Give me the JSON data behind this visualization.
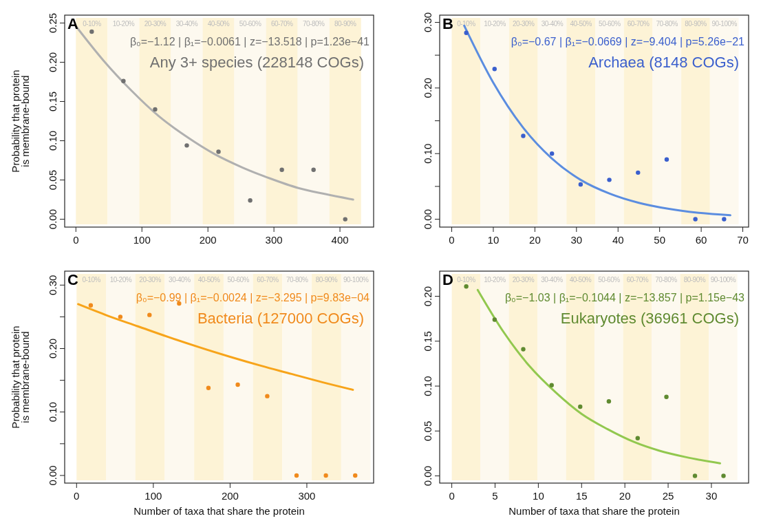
{
  "chart_data": [
    {
      "type": "scatter",
      "ylabel": "Probability that protein\nis membrane-bound",
      "annotations": [
        "A",
        "β₀=−1.12 | β₁=−0.0061 | z=−13.518 | p=1.23e−41",
        "Any 3+ species (228148 COGs)"
      ],
      "xlim": [
        -17,
        451
      ],
      "xticks": [
        0,
        100,
        200,
        300,
        400
      ],
      "ylim": [
        -0.01,
        0.26
      ],
      "yticks": [
        {
          "value": 0,
          "label": "0.00"
        },
        {
          "value": 0.05,
          "label": "0.05"
        },
        {
          "value": 0.1,
          "label": "0.10"
        },
        {
          "value": 0.15,
          "label": "0.15"
        },
        {
          "value": 0.2,
          "label": "0.20"
        },
        {
          "value": 0.25,
          "label": "0.25"
        }
      ],
      "bands": [
        {
          "axis": "x",
          "from": 0,
          "to": 48,
          "label": "0-10%",
          "color": "#fdf3d6"
        },
        {
          "axis": "x",
          "from": 48,
          "to": 96,
          "label": "10-20%",
          "color": "#fdf9ef"
        },
        {
          "axis": "x",
          "from": 96,
          "to": 144,
          "label": "20-30%",
          "color": "#fdf3d6"
        },
        {
          "axis": "x",
          "from": 144,
          "to": 192,
          "label": "30-40%",
          "color": "#fdf9ef"
        },
        {
          "axis": "x",
          "from": 192,
          "to": 240,
          "label": "40-50%",
          "color": "#fdf3d6"
        },
        {
          "axis": "x",
          "from": 240,
          "to": 288,
          "label": "50-60%",
          "color": "#fdf9ef"
        },
        {
          "axis": "x",
          "from": 288,
          "to": 336,
          "label": "60-70%",
          "color": "#fdf3d6"
        },
        {
          "axis": "x",
          "from": 336,
          "to": 384,
          "label": "70-80%",
          "color": "#fdf9ef"
        },
        {
          "axis": "x",
          "from": 384,
          "to": 432,
          "label": "80-90%",
          "color": "#fdf3d6"
        }
      ],
      "series": [
        {
          "marker": "circle",
          "color": "#707070",
          "x": [
            24,
            72,
            120,
            168,
            216,
            264,
            312,
            360,
            408
          ],
          "values": [
            0.239,
            0.176,
            0.14,
            0.094,
            0.086,
            0.024,
            0.063,
            0.063,
            0
          ]
        },
        {
          "type": "line",
          "color": "#b0b0b0",
          "x": [
            0,
            42,
            84,
            126,
            168,
            210,
            252,
            294,
            336,
            378,
            420
          ],
          "values": [
            0.246,
            0.202,
            0.164,
            0.131,
            0.105,
            0.083,
            0.066,
            0.052,
            0.04,
            0.032,
            0.025
          ]
        }
      ]
    },
    {
      "type": "scatter",
      "annotations": [
        "B",
        "β₀=−0.67 | β₁=−0.0669 | z=−9.404 | p=5.26e−21",
        "Archaea (8148 COGs)"
      ],
      "xlim": [
        -2.9,
        71.4
      ],
      "xticks": [
        0,
        10,
        20,
        30,
        40,
        50,
        60,
        70
      ],
      "ylim": [
        -0.012,
        0.311
      ],
      "yticks": [
        {
          "value": 0,
          "label": "0.00"
        },
        {
          "value": 0.05,
          "label": null
        },
        {
          "value": 0.1,
          "label": "0.10"
        },
        {
          "value": 0.15,
          "label": null
        },
        {
          "value": 0.2,
          "label": "0.20"
        },
        {
          "value": 0.25,
          "label": null
        },
        {
          "value": 0.3,
          "label": "0.30"
        }
      ],
      "bands": [
        {
          "axis": "x",
          "from": 0,
          "to": 6.9,
          "label": "0-10%",
          "color": "#fdf3d6"
        },
        {
          "axis": "x",
          "from": 6.9,
          "to": 13.8,
          "label": "10-20%",
          "color": "#fdf9ef"
        },
        {
          "axis": "x",
          "from": 13.8,
          "to": 20.7,
          "label": "20-30%",
          "color": "#fdf3d6"
        },
        {
          "axis": "x",
          "from": 20.7,
          "to": 27.6,
          "label": "30-40%",
          "color": "#fdf9ef"
        },
        {
          "axis": "x",
          "from": 27.6,
          "to": 34.5,
          "label": "40-50%",
          "color": "#fdf3d6"
        },
        {
          "axis": "x",
          "from": 34.5,
          "to": 41.4,
          "label": "50-60%",
          "color": "#fdf9ef"
        },
        {
          "axis": "x",
          "from": 41.4,
          "to": 48.3,
          "label": "60-70%",
          "color": "#fdf3d6"
        },
        {
          "axis": "x",
          "from": 48.3,
          "to": 55.2,
          "label": "70-80%",
          "color": "#fdf9ef"
        },
        {
          "axis": "x",
          "from": 55.2,
          "to": 62.1,
          "label": "80-90%",
          "color": "#fdf3d6"
        },
        {
          "axis": "x",
          "from": 62.1,
          "to": 69,
          "label": "90-100%",
          "color": "#fdf9ef"
        }
      ],
      "series": [
        {
          "marker": "circle",
          "color": "#3a5fcd",
          "x": [
            3.5,
            10.3,
            17.2,
            24.1,
            31,
            37.9,
            44.8,
            51.7,
            58.6,
            65.5
          ],
          "values": [
            0.284,
            0.229,
            0.127,
            0.1,
            0.053,
            0.06,
            0.071,
            0.091,
            0,
            0
          ]
        },
        {
          "type": "line",
          "color": "#5b8de0",
          "x": [
            3,
            10,
            17,
            24,
            31,
            38,
            45,
            52,
            59,
            67
          ],
          "values": [
            0.295,
            0.208,
            0.141,
            0.093,
            0.06,
            0.039,
            0.025,
            0.016,
            0.01,
            0.006
          ]
        }
      ]
    },
    {
      "type": "scatter",
      "xlabel": "Number of taxa that share the protein",
      "ylabel": "Probability that protein\nis membrane-bound",
      "annotations": [
        "C",
        "β₀=−0.99 | β₁=−0.0024 | z=−3.295 | p=9.83e−04",
        "Bacteria (127000 COGs)"
      ],
      "xlim": [
        -15.5,
        387
      ],
      "xticks": [
        0,
        100,
        200,
        300
      ],
      "ylim": [
        -0.012,
        0.322
      ],
      "yticks": [
        {
          "value": 0,
          "label": "0.00"
        },
        {
          "value": 0.05,
          "label": null
        },
        {
          "value": 0.1,
          "label": "0.10"
        },
        {
          "value": 0.15,
          "label": null
        },
        {
          "value": 0.2,
          "label": "0.20"
        },
        {
          "value": 0.25,
          "label": null
        },
        {
          "value": 0.3,
          "label": "0.30"
        }
      ],
      "bands": [
        {
          "axis": "x",
          "from": 0,
          "to": 38.3,
          "label": "0-10%",
          "color": "#fdf3d6"
        },
        {
          "axis": "x",
          "from": 38.3,
          "to": 76.6,
          "label": "10-20%",
          "color": "#fdf9ef"
        },
        {
          "axis": "x",
          "from": 76.6,
          "to": 114.9,
          "label": "20-30%",
          "color": "#fdf3d6"
        },
        {
          "axis": "x",
          "from": 114.9,
          "to": 153.2,
          "label": "30-40%",
          "color": "#fdf9ef"
        },
        {
          "axis": "x",
          "from": 153.2,
          "to": 191.5,
          "label": "40-50%",
          "color": "#fdf3d6"
        },
        {
          "axis": "x",
          "from": 191.5,
          "to": 229.8,
          "label": "50-60%",
          "color": "#fdf9ef"
        },
        {
          "axis": "x",
          "from": 229.8,
          "to": 268.1,
          "label": "60-70%",
          "color": "#fdf3d6"
        },
        {
          "axis": "x",
          "from": 268.1,
          "to": 306.4,
          "label": "70-80%",
          "color": "#fdf9ef"
        },
        {
          "axis": "x",
          "from": 306.4,
          "to": 344.7,
          "label": "80-90%",
          "color": "#fdf3d6"
        },
        {
          "axis": "x",
          "from": 344.7,
          "to": 383,
          "label": "90-100%",
          "color": "#fdf9ef"
        }
      ],
      "series": [
        {
          "marker": "circle",
          "color": "#f08a1c",
          "x": [
            18.5,
            57,
            95,
            133.6,
            171.8,
            210,
            248.4,
            286.6,
            324.8,
            363
          ],
          "values": [
            0.268,
            0.25,
            0.253,
            0.271,
            0.138,
            0.143,
            0.125,
            0,
            0,
            0
          ]
        },
        {
          "type": "line",
          "color": "#f7a41a",
          "x": [
            2,
            40,
            80,
            120,
            160,
            200,
            240,
            280,
            320,
            360
          ],
          "values": [
            0.27,
            0.252,
            0.235,
            0.218,
            0.202,
            0.187,
            0.173,
            0.16,
            0.147,
            0.135
          ]
        }
      ]
    },
    {
      "type": "scatter",
      "xlabel": "Number of taxa that share the protein",
      "annotations": [
        "D",
        "β₀=−1.03 | β₁=−0.1044 | z=−13.857 | p=1.15e−43",
        "Eukaryotes (36961 COGs)"
      ],
      "xlim": [
        -1.4,
        34.3
      ],
      "xticks": [
        0,
        5,
        10,
        15,
        20,
        25,
        30
      ],
      "ylim": [
        -0.008,
        0.228
      ],
      "yticks": [
        {
          "value": 0,
          "label": "0.00"
        },
        {
          "value": 0.05,
          "label": "0.05"
        },
        {
          "value": 0.1,
          "label": "0.10"
        },
        {
          "value": 0.15,
          "label": "0.15"
        },
        {
          "value": 0.2,
          "label": "0.20"
        }
      ],
      "bands": [
        {
          "axis": "x",
          "from": 0,
          "to": 3.3,
          "label": "0-10%",
          "color": "#fdf3d6"
        },
        {
          "axis": "x",
          "from": 3.3,
          "to": 6.6,
          "label": "10-20%",
          "color": "#fdf9ef"
        },
        {
          "axis": "x",
          "from": 6.6,
          "to": 9.9,
          "label": "20-30%",
          "color": "#fdf3d6"
        },
        {
          "axis": "x",
          "from": 9.9,
          "to": 13.2,
          "label": "30-40%",
          "color": "#fdf9ef"
        },
        {
          "axis": "x",
          "from": 13.2,
          "to": 16.5,
          "label": "40-50%",
          "color": "#fdf3d6"
        },
        {
          "axis": "x",
          "from": 16.5,
          "to": 19.8,
          "label": "50-60%",
          "color": "#fdf9ef"
        },
        {
          "axis": "x",
          "from": 19.8,
          "to": 23.1,
          "label": "60-70%",
          "color": "#fdf3d6"
        },
        {
          "axis": "x",
          "from": 23.1,
          "to": 26.4,
          "label": "70-80%",
          "color": "#fdf9ef"
        },
        {
          "axis": "x",
          "from": 26.4,
          "to": 29.7,
          "label": "80-90%",
          "color": "#fdf3d6"
        },
        {
          "axis": "x",
          "from": 29.7,
          "to": 33,
          "label": "90-100%",
          "color": "#fdf9ef"
        }
      ],
      "series": [
        {
          "marker": "circle",
          "color": "#5f8a30",
          "x": [
            1.67,
            4.95,
            8.26,
            11.54,
            14.84,
            18.15,
            21.48,
            24.8,
            28.1,
            31.4
          ],
          "values": [
            0.211,
            0.174,
            0.141,
            0.101,
            0.077,
            0.083,
            0.042,
            0.088,
            0,
            0
          ]
        },
        {
          "type": "line",
          "color": "#92c84f",
          "x": [
            3,
            6,
            9,
            12,
            15,
            18,
            21,
            24,
            27,
            31
          ],
          "values": [
            0.207,
            0.16,
            0.122,
            0.093,
            0.069,
            0.052,
            0.038,
            0.028,
            0.021,
            0.014
          ]
        }
      ]
    }
  ]
}
